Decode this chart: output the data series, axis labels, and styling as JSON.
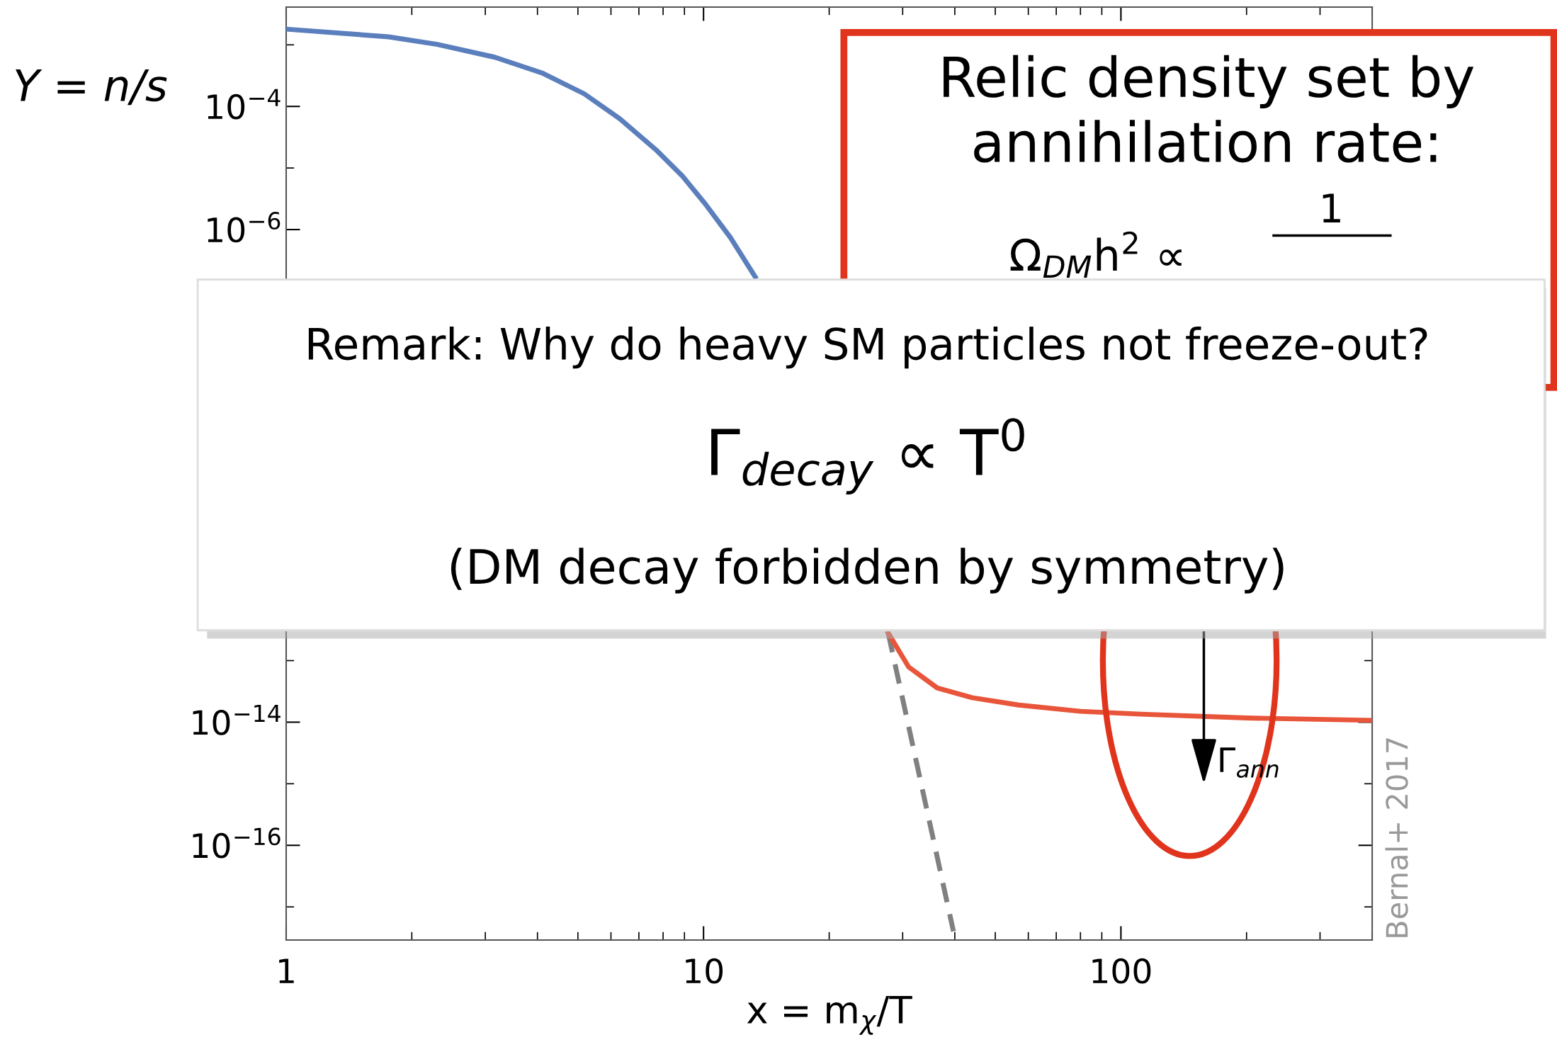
{
  "chart_data": {
    "type": "line",
    "xlabel": "x = m$_{χ}$/T",
    "ylabel": "Y = n/s",
    "log": "xy",
    "xlim": [
      1,
      400
    ],
    "ylim": [
      2.9e-18,
      0.0041
    ],
    "xticks": [
      1,
      10,
      100
    ],
    "yticks": [
      {
        "value": 0.0001,
        "label": "10$^{−4}$"
      },
      {
        "value": 1e-06,
        "label": "10$^{−6}$"
      },
      {
        "value": 1e-14,
        "label": "10$^{−14}$"
      },
      {
        "value": 1e-16,
        "label": "10$^{−16}$"
      }
    ],
    "series": [
      {
        "color": "#5b7fbc",
        "line_style": "solid",
        "x": [
          1,
          1.76,
          2.3,
          3.16,
          4.1,
          5.18,
          6.3,
          7.74,
          8.9,
          10.1,
          11.6,
          13.3
        ],
        "values": [
          0.0018,
          0.00135,
          0.00102,
          0.00063,
          0.00035,
          0.00016,
          6.3e-05,
          1.9e-05,
          7.4e-06,
          2.6e-06,
          7.4e-07,
          1.7e-07
        ]
      },
      {
        "color": "#808080",
        "line_style": "dashed",
        "x": [
          27.7,
          39.7
        ],
        "values": [
          2.8e-13,
          4e-18
        ]
      },
      {
        "color": "#e8553a",
        "line_style": "solid",
        "x": [
          27.7,
          31,
          36.3,
          44,
          56.9,
          80,
          111.6,
          200,
          400
        ],
        "values": [
          2.8e-13,
          7.9e-14,
          3.6e-14,
          2.5e-14,
          1.9e-14,
          1.5e-14,
          1.35e-14,
          1.17e-14,
          1.07e-14
        ]
      }
    ],
    "annotations": [
      "Γ$_{ann}$",
      "Relic density set by",
      "annihilation rate:",
      "Ω$_{DM}$h$^{2}$ ∝",
      "1",
      "Remark: Why do heavy SM particles not freeze-out?",
      "Γ$_{decay}$ ∝ T$^{0}$",
      "(DM decay forbidden by symmetry)",
      "Bernal+ 2017"
    ]
  }
}
